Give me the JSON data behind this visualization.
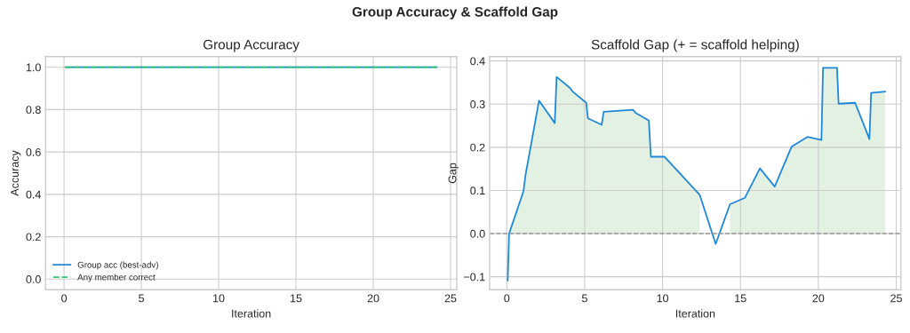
{
  "chart_data": [
    {
      "type": "line",
      "title": "Group Accuracy",
      "annotations": [
        "Group Accuracy & Scaffold Gap"
      ],
      "xlabel": "Iteration",
      "ylabel": "Accuracy",
      "xlim": [
        -1.2,
        25.4
      ],
      "xticks": [
        0,
        5,
        10,
        15,
        20,
        25
      ],
      "ylim": [
        -0.05,
        1.05
      ],
      "yticks": [
        {
          "value": 0,
          "label": "0.0"
        },
        0.2,
        0.4,
        0.6,
        0.8,
        {
          "value": 1,
          "label": "1.0"
        }
      ],
      "grid": true,
      "legend": "bottom left",
      "series": [
        {
          "name": "Group acc (best-adv)",
          "color": "#1f88d8",
          "x": [
            0.1,
            24.1
          ],
          "values": [
            1.0,
            1.0
          ],
          "line_style": "solid"
        },
        {
          "name": "Any member correct",
          "color": "#2ecc71",
          "x": [
            0.1,
            24.1
          ],
          "values": [
            1.0,
            1.0
          ],
          "line_style": "dashed"
        }
      ]
    },
    {
      "type": "line",
      "title": "Scaffold Gap (+ = scaffold helping)",
      "xlabel": "Iteration",
      "ylabel": "Gap",
      "xlim": [
        -1.1,
        25.3
      ],
      "xticks": [
        0,
        5,
        10,
        15,
        20,
        25
      ],
      "ylim": [
        -0.13,
        0.41
      ],
      "yticks": [
        {
          "value": -0.1,
          "label": "−0.1"
        },
        {
          "value": 0,
          "label": "0.0"
        },
        0.1,
        0.2,
        0.3,
        0.4
      ],
      "grid": true,
      "ref_lines": [
        {
          "axis": "y",
          "value": 0,
          "color": "#999999",
          "line_style": "dashed"
        }
      ],
      "series": [
        {
          "type": "area",
          "color": "#e3f1e3",
          "x": [
            0.15,
            1.07,
            1.21,
            2.07,
            3.08,
            3.2,
            4.04,
            4.23,
            5.1,
            5.21,
            6.09,
            6.22,
            8.1,
            8.26,
            9.12,
            9.25,
            10.13,
            12.38,
            13.41,
            14.33,
            15.29,
            16.25,
            17.2,
            18.28,
            19.3,
            20.2,
            20.3,
            21.2,
            21.3,
            22.36,
            23.28,
            23.39,
            24.29
          ],
          "values": [
            0.0,
            0.098,
            0.137,
            0.308,
            0.256,
            0.363,
            0.338,
            0.329,
            0.303,
            0.267,
            0.252,
            0.282,
            0.287,
            0.28,
            0.262,
            0.178,
            0.178,
            0.09,
            null,
            0.068,
            0.083,
            0.151,
            0.109,
            0.201,
            0.224,
            0.217,
            0.384,
            0.384,
            0.301,
            0.303,
            0.219,
            0.326,
            0.329
          ]
        },
        {
          "color": "#1f88d8",
          "x": [
            0.06,
            0.15,
            1.07,
            1.21,
            2.07,
            3.08,
            3.2,
            4.04,
            4.23,
            5.1,
            5.21,
            6.09,
            6.22,
            8.1,
            8.26,
            9.12,
            9.25,
            10.13,
            12.38,
            13.41,
            14.33,
            15.29,
            16.25,
            17.2,
            18.28,
            19.3,
            20.2,
            20.3,
            21.2,
            21.3,
            22.36,
            23.28,
            23.39,
            24.29
          ],
          "values": [
            -0.109,
            0.0,
            0.098,
            0.137,
            0.308,
            0.256,
            0.363,
            0.338,
            0.329,
            0.303,
            0.267,
            0.252,
            0.282,
            0.287,
            0.28,
            0.262,
            0.178,
            0.178,
            0.09,
            -0.024,
            0.068,
            0.083,
            0.151,
            0.109,
            0.201,
            0.224,
            0.217,
            0.384,
            0.384,
            0.301,
            0.303,
            0.219,
            0.326,
            0.329
          ]
        }
      ]
    }
  ]
}
